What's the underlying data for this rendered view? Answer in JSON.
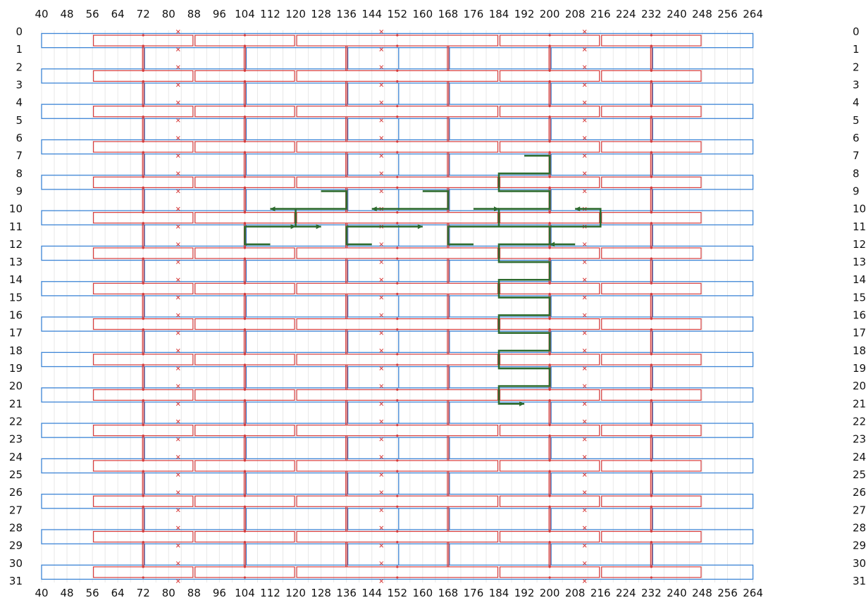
{
  "chart_data": {
    "type": "scatter",
    "x_ticks": [
      40,
      48,
      56,
      64,
      72,
      80,
      88,
      96,
      104,
      112,
      120,
      128,
      136,
      144,
      152,
      160,
      168,
      176,
      184,
      192,
      200,
      208,
      216,
      224,
      232,
      240,
      248,
      256,
      264
    ],
    "y_ticks": [
      0,
      1,
      2,
      3,
      4,
      5,
      6,
      7,
      8,
      9,
      10,
      11,
      12,
      13,
      14,
      15,
      16,
      17,
      18,
      19,
      20,
      21,
      22,
      23,
      24,
      25,
      26,
      27,
      28,
      29,
      30,
      31
    ],
    "xlim": [
      40,
      264
    ],
    "ylim": [
      0,
      31
    ],
    "y_inverted": true,
    "grid": true,
    "colors": {
      "outer_ring": "#3d85d6",
      "inner_ring": "#d63b3b",
      "highlight_path": "#2e6b2e",
      "grid": "#e8e8e8",
      "cross_marker": "#d63b3b"
    },
    "blue_rails": {
      "x_range": [
        40,
        264
      ],
      "row_pairs": [
        [
          0,
          1
        ],
        [
          2,
          3
        ],
        [
          4,
          5
        ],
        [
          6,
          7
        ],
        [
          8,
          9
        ],
        [
          10,
          11
        ],
        [
          12,
          13
        ],
        [
          14,
          15
        ],
        [
          16,
          17
        ],
        [
          18,
          19
        ],
        [
          20,
          21
        ],
        [
          22,
          23
        ],
        [
          24,
          25
        ],
        [
          26,
          27
        ],
        [
          28,
          29
        ],
        [
          30,
          31
        ]
      ],
      "connector_columns": [
        72,
        104,
        136,
        152,
        168,
        200,
        232
      ]
    },
    "red_rings": {
      "segments_x": [
        [
          56,
          88
        ],
        [
          88,
          120
        ],
        [
          120,
          184
        ],
        [
          184,
          216
        ],
        [
          216,
          248
        ]
      ],
      "row_pairs": [
        [
          0,
          1
        ],
        [
          2,
          3
        ],
        [
          4,
          5
        ],
        [
          6,
          7
        ],
        [
          8,
          9
        ],
        [
          10,
          11
        ],
        [
          12,
          13
        ],
        [
          14,
          15
        ],
        [
          16,
          17
        ],
        [
          18,
          19
        ],
        [
          20,
          21
        ],
        [
          22,
          23
        ],
        [
          24,
          25
        ],
        [
          26,
          27
        ],
        [
          28,
          29
        ],
        [
          30,
          31
        ]
      ],
      "connector_columns": [
        72,
        104,
        136,
        168,
        200,
        232
      ],
      "cross_columns": [
        83,
        147,
        211
      ]
    },
    "green_path": [
      [
        [
          192,
          7
        ],
        [
          200,
          7
        ],
        [
          200,
          8
        ],
        [
          184,
          8
        ],
        [
          184,
          9
        ],
        [
          200,
          9
        ],
        [
          200,
          10
        ],
        [
          184,
          10
        ],
        [
          184,
          11
        ],
        [
          200,
          11
        ],
        [
          200,
          12
        ],
        [
          184,
          12
        ],
        [
          184,
          13
        ],
        [
          200,
          13
        ],
        [
          200,
          14
        ],
        [
          184,
          14
        ],
        [
          184,
          15
        ],
        [
          200,
          15
        ],
        [
          200,
          16
        ],
        [
          184,
          16
        ],
        [
          184,
          17
        ],
        [
          200,
          17
        ],
        [
          200,
          18
        ],
        [
          184,
          18
        ],
        [
          184,
          19
        ],
        [
          200,
          19
        ],
        [
          200,
          20
        ],
        [
          184,
          20
        ],
        [
          184,
          21
        ],
        [
          192,
          21
        ]
      ],
      [
        [
          128,
          9
        ],
        [
          136,
          9
        ],
        [
          136,
          10
        ],
        [
          120,
          10
        ],
        [
          112,
          10
        ]
      ],
      [
        [
          120,
          10
        ],
        [
          120,
          11
        ],
        [
          128,
          11
        ]
      ],
      [
        [
          160,
          9
        ],
        [
          168,
          9
        ],
        [
          168,
          10
        ],
        [
          144,
          10
        ]
      ],
      [
        [
          112,
          12
        ],
        [
          104,
          12
        ],
        [
          104,
          11
        ],
        [
          120,
          11
        ]
      ],
      [
        [
          144,
          12
        ],
        [
          136,
          12
        ],
        [
          136,
          11
        ],
        [
          160,
          11
        ]
      ],
      [
        [
          176,
          12
        ],
        [
          168,
          12
        ],
        [
          168,
          11
        ],
        [
          216,
          11
        ],
        [
          216,
          10
        ],
        [
          208,
          10
        ]
      ],
      [
        [
          176,
          10
        ],
        [
          184,
          10
        ]
      ],
      [
        [
          208,
          12
        ],
        [
          200,
          12
        ]
      ]
    ]
  }
}
